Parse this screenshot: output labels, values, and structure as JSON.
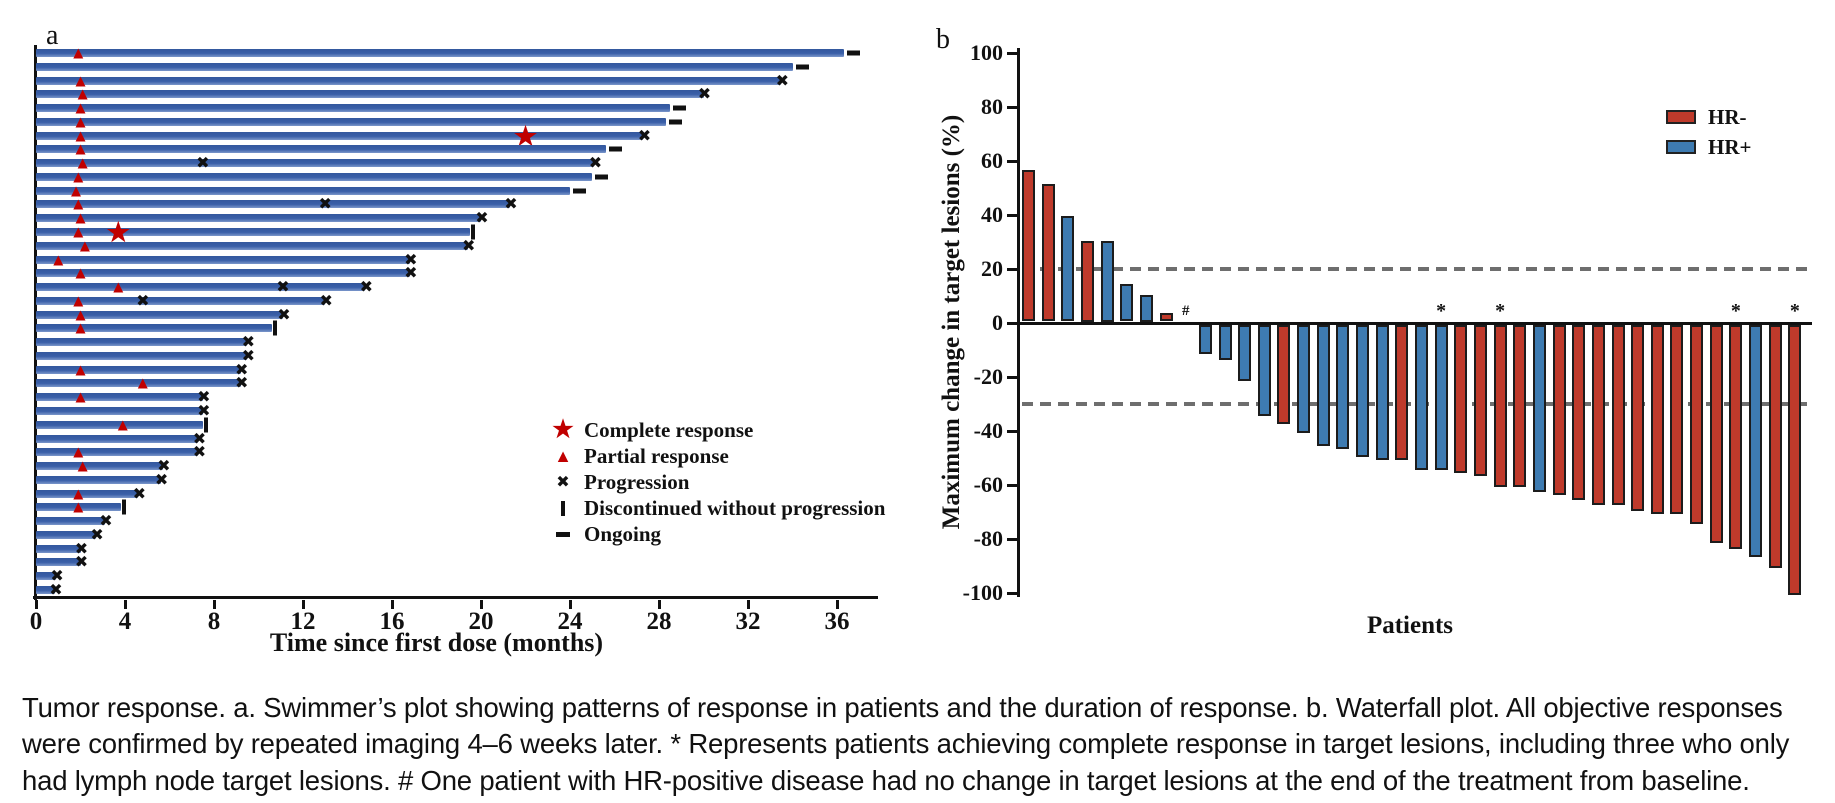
{
  "caption": "Tumor response. a. Swimmer’s plot showing patterns of response in patients and the duration of response. b. Waterfall plot. All objective responses were confirmed by repeated imaging 4–6 weeks later. * Represents patients achieving complete response in target lesions, including three who only had lymph node target lesions. # One patient with HR-positive disease had no change in target lesions at the end of the treatment from baseline.",
  "colors": {
    "swimmer_bar": "#3a5fa8",
    "marker_red": "#c00000",
    "hr_negative": "#bf3a2b",
    "hr_positive": "#3e7bb1",
    "reference_dash": "#6e6e6e",
    "axis_black": "#111111"
  },
  "chart_data": [
    {
      "type": "swimmer",
      "panel_label": "a",
      "xlabel": "Time since first dose (months)",
      "x_ticks": [
        0,
        4,
        8,
        12,
        16,
        20,
        24,
        28,
        32,
        36
      ],
      "xlim": [
        0,
        37.5
      ],
      "legend": [
        {
          "symbol": "star",
          "label": "Complete response"
        },
        {
          "symbol": "triangle",
          "label": "Partial response"
        },
        {
          "symbol": "x",
          "label": "Progression"
        },
        {
          "symbol": "bar",
          "label": "Discontinued without progression"
        },
        {
          "symbol": "dash",
          "label": "Ongoing"
        }
      ],
      "patients": [
        {
          "duration_months": 36.3,
          "partial_response_month": 1.9,
          "complete_response_month": null,
          "progression_months": [],
          "end": "ongoing"
        },
        {
          "duration_months": 34.0,
          "partial_response_month": null,
          "complete_response_month": null,
          "progression_months": [],
          "end": "ongoing"
        },
        {
          "duration_months": 33.5,
          "partial_response_month": 2.0,
          "complete_response_month": null,
          "progression_months": [],
          "end": "progression"
        },
        {
          "duration_months": 30.0,
          "partial_response_month": 2.1,
          "complete_response_month": null,
          "progression_months": [],
          "end": "progression"
        },
        {
          "duration_months": 28.5,
          "partial_response_month": 2.0,
          "complete_response_month": null,
          "progression_months": [],
          "end": "ongoing"
        },
        {
          "duration_months": 28.3,
          "partial_response_month": 2.0,
          "complete_response_month": null,
          "progression_months": [],
          "end": "ongoing"
        },
        {
          "duration_months": 27.3,
          "partial_response_month": 2.0,
          "complete_response_month": 22.0,
          "progression_months": [],
          "end": "progression"
        },
        {
          "duration_months": 25.6,
          "partial_response_month": 2.0,
          "complete_response_month": null,
          "progression_months": [],
          "end": "ongoing"
        },
        {
          "duration_months": 25.1,
          "partial_response_month": 2.1,
          "complete_response_month": null,
          "progression_months": [
            7.5
          ],
          "end": "progression"
        },
        {
          "duration_months": 25.0,
          "partial_response_month": 1.9,
          "complete_response_month": null,
          "progression_months": [],
          "end": "ongoing"
        },
        {
          "duration_months": 24.0,
          "partial_response_month": 1.8,
          "complete_response_month": null,
          "progression_months": [],
          "end": "ongoing"
        },
        {
          "duration_months": 21.3,
          "partial_response_month": 1.9,
          "complete_response_month": null,
          "progression_months": [
            13.0
          ],
          "end": "progression"
        },
        {
          "duration_months": 20.0,
          "partial_response_month": 2.0,
          "complete_response_month": null,
          "progression_months": [],
          "end": "progression"
        },
        {
          "duration_months": 19.5,
          "partial_response_month": 1.9,
          "complete_response_month": 3.7,
          "progression_months": [],
          "end": "discontinued"
        },
        {
          "duration_months": 19.4,
          "partial_response_month": 2.2,
          "complete_response_month": null,
          "progression_months": [],
          "end": "progression"
        },
        {
          "duration_months": 16.8,
          "partial_response_month": 1.0,
          "complete_response_month": null,
          "progression_months": [],
          "end": "progression"
        },
        {
          "duration_months": 16.8,
          "partial_response_month": 2.0,
          "complete_response_month": null,
          "progression_months": [],
          "end": "progression"
        },
        {
          "duration_months": 14.8,
          "partial_response_month": 3.7,
          "complete_response_month": null,
          "progression_months": [
            11.1
          ],
          "end": "progression"
        },
        {
          "duration_months": 13.0,
          "partial_response_month": 1.9,
          "complete_response_month": null,
          "progression_months": [
            4.8
          ],
          "end": "progression"
        },
        {
          "duration_months": 11.1,
          "partial_response_month": 2.0,
          "complete_response_month": null,
          "progression_months": [],
          "end": "progression"
        },
        {
          "duration_months": 10.6,
          "partial_response_month": 2.0,
          "complete_response_month": null,
          "progression_months": [],
          "end": "discontinued"
        },
        {
          "duration_months": 9.5,
          "partial_response_month": null,
          "complete_response_month": null,
          "progression_months": [],
          "end": "progression"
        },
        {
          "duration_months": 9.5,
          "partial_response_month": null,
          "complete_response_month": null,
          "progression_months": [],
          "end": "progression"
        },
        {
          "duration_months": 9.2,
          "partial_response_month": 2.0,
          "complete_response_month": null,
          "progression_months": [],
          "end": "progression"
        },
        {
          "duration_months": 9.2,
          "partial_response_month": 4.8,
          "complete_response_month": null,
          "progression_months": [],
          "end": "progression"
        },
        {
          "duration_months": 7.5,
          "partial_response_month": 2.0,
          "complete_response_month": null,
          "progression_months": [],
          "end": "progression"
        },
        {
          "duration_months": 7.5,
          "partial_response_month": null,
          "complete_response_month": null,
          "progression_months": [],
          "end": "progression"
        },
        {
          "duration_months": 7.5,
          "partial_response_month": 3.9,
          "complete_response_month": null,
          "progression_months": [],
          "end": "discontinued"
        },
        {
          "duration_months": 7.3,
          "partial_response_month": null,
          "complete_response_month": null,
          "progression_months": [],
          "end": "progression"
        },
        {
          "duration_months": 7.3,
          "partial_response_month": 1.9,
          "complete_response_month": null,
          "progression_months": [],
          "end": "progression"
        },
        {
          "duration_months": 5.7,
          "partial_response_month": 2.1,
          "complete_response_month": null,
          "progression_months": [],
          "end": "progression"
        },
        {
          "duration_months": 5.6,
          "partial_response_month": null,
          "complete_response_month": null,
          "progression_months": [],
          "end": "progression"
        },
        {
          "duration_months": 4.6,
          "partial_response_month": 1.9,
          "complete_response_month": null,
          "progression_months": [],
          "end": "progression"
        },
        {
          "duration_months": 3.8,
          "partial_response_month": 1.9,
          "complete_response_month": null,
          "progression_months": [],
          "end": "discontinued"
        },
        {
          "duration_months": 3.1,
          "partial_response_month": null,
          "complete_response_month": null,
          "progression_months": [],
          "end": "progression"
        },
        {
          "duration_months": 2.7,
          "partial_response_month": null,
          "complete_response_month": null,
          "progression_months": [],
          "end": "progression"
        },
        {
          "duration_months": 2.0,
          "partial_response_month": null,
          "complete_response_month": null,
          "progression_months": [],
          "end": "progression"
        },
        {
          "duration_months": 2.0,
          "partial_response_month": null,
          "complete_response_month": null,
          "progression_months": [],
          "end": "progression"
        },
        {
          "duration_months": 0.9,
          "partial_response_month": null,
          "complete_response_month": null,
          "progression_months": [],
          "end": "progression"
        },
        {
          "duration_months": 0.85,
          "partial_response_month": null,
          "complete_response_month": null,
          "progression_months": [],
          "end": "progression"
        }
      ]
    },
    {
      "type": "waterfall",
      "panel_label": "b",
      "ylabel": "Maximum change in target lesions (%)",
      "xlabel": "Patients",
      "y_ticks": [
        100,
        80,
        60,
        40,
        20,
        0,
        -20,
        -40,
        -60,
        -80,
        -100
      ],
      "ylim": [
        -100,
        100
      ],
      "reference_lines": [
        20,
        -30
      ],
      "legend": [
        {
          "label": "HR-",
          "group": "HR-",
          "color": "#bf3a2b"
        },
        {
          "label": "HR+",
          "group": "HR+",
          "color": "#3e7bb1"
        }
      ],
      "bars": [
        {
          "value": 56,
          "group": "HR-"
        },
        {
          "value": 51,
          "group": "HR-"
        },
        {
          "value": 39,
          "group": "HR+"
        },
        {
          "value": 30,
          "group": "HR-"
        },
        {
          "value": 30,
          "group": "HR+"
        },
        {
          "value": 14,
          "group": "HR+"
        },
        {
          "value": 10,
          "group": "HR+"
        },
        {
          "value": 3,
          "group": "HR-"
        },
        {
          "value": 0,
          "group": "HR+",
          "annotation": "#"
        },
        {
          "value": -11,
          "group": "HR+"
        },
        {
          "value": -13,
          "group": "HR+"
        },
        {
          "value": -21,
          "group": "HR+"
        },
        {
          "value": -34,
          "group": "HR+"
        },
        {
          "value": -37,
          "group": "HR-"
        },
        {
          "value": -40,
          "group": "HR+"
        },
        {
          "value": -45,
          "group": "HR+"
        },
        {
          "value": -46,
          "group": "HR+"
        },
        {
          "value": -49,
          "group": "HR+"
        },
        {
          "value": -50,
          "group": "HR+"
        },
        {
          "value": -50,
          "group": "HR-"
        },
        {
          "value": -54,
          "group": "HR+"
        },
        {
          "value": -54,
          "group": "HR+",
          "annotation": "*"
        },
        {
          "value": -55,
          "group": "HR-"
        },
        {
          "value": -56,
          "group": "HR-"
        },
        {
          "value": -60,
          "group": "HR-",
          "annotation": "*"
        },
        {
          "value": -60,
          "group": "HR-"
        },
        {
          "value": -62,
          "group": "HR+"
        },
        {
          "value": -63,
          "group": "HR-"
        },
        {
          "value": -65,
          "group": "HR-"
        },
        {
          "value": -67,
          "group": "HR-"
        },
        {
          "value": -67,
          "group": "HR-"
        },
        {
          "value": -69,
          "group": "HR-"
        },
        {
          "value": -70,
          "group": "HR-"
        },
        {
          "value": -70,
          "group": "HR-"
        },
        {
          "value": -74,
          "group": "HR-"
        },
        {
          "value": -81,
          "group": "HR-"
        },
        {
          "value": -83,
          "group": "HR-",
          "annotation": "*"
        },
        {
          "value": -86,
          "group": "HR+"
        },
        {
          "value": -90,
          "group": "HR-"
        },
        {
          "value": -100,
          "group": "HR-",
          "annotation": "*"
        }
      ]
    }
  ]
}
